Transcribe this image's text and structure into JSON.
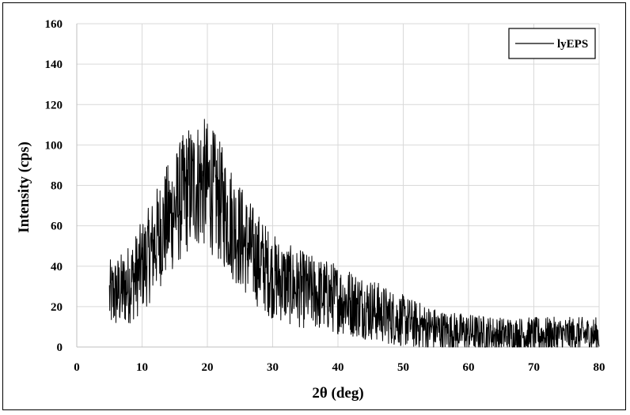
{
  "chart_data": {
    "type": "line",
    "xlabel": "2θ (deg)",
    "ylabel": "Intensity (cps)",
    "xlim": [
      0,
      80
    ],
    "ylim": [
      0,
      160
    ],
    "x_ticks": [
      "0",
      "10",
      "20",
      "30",
      "40",
      "50",
      "60",
      "70",
      "80"
    ],
    "y_ticks": [
      "0",
      "20",
      "40",
      "60",
      "80",
      "100",
      "120",
      "140",
      "160"
    ],
    "grid": true,
    "legend_position": "top-right",
    "series": [
      {
        "name": "lyEPS",
        "color": "#000000",
        "x": [
          5,
          7,
          9,
          11,
          13,
          15,
          17,
          19,
          20,
          21,
          23,
          25,
          27,
          30,
          33,
          36,
          40,
          44,
          48,
          52,
          56,
          60,
          65,
          70,
          75,
          80
        ],
        "y": [
          25,
          28,
          35,
          45,
          58,
          68,
          78,
          82,
          80,
          76,
          66,
          55,
          46,
          35,
          30,
          27,
          24,
          20,
          15,
          11,
          8,
          7,
          6,
          6,
          6,
          6
        ]
      }
    ]
  }
}
